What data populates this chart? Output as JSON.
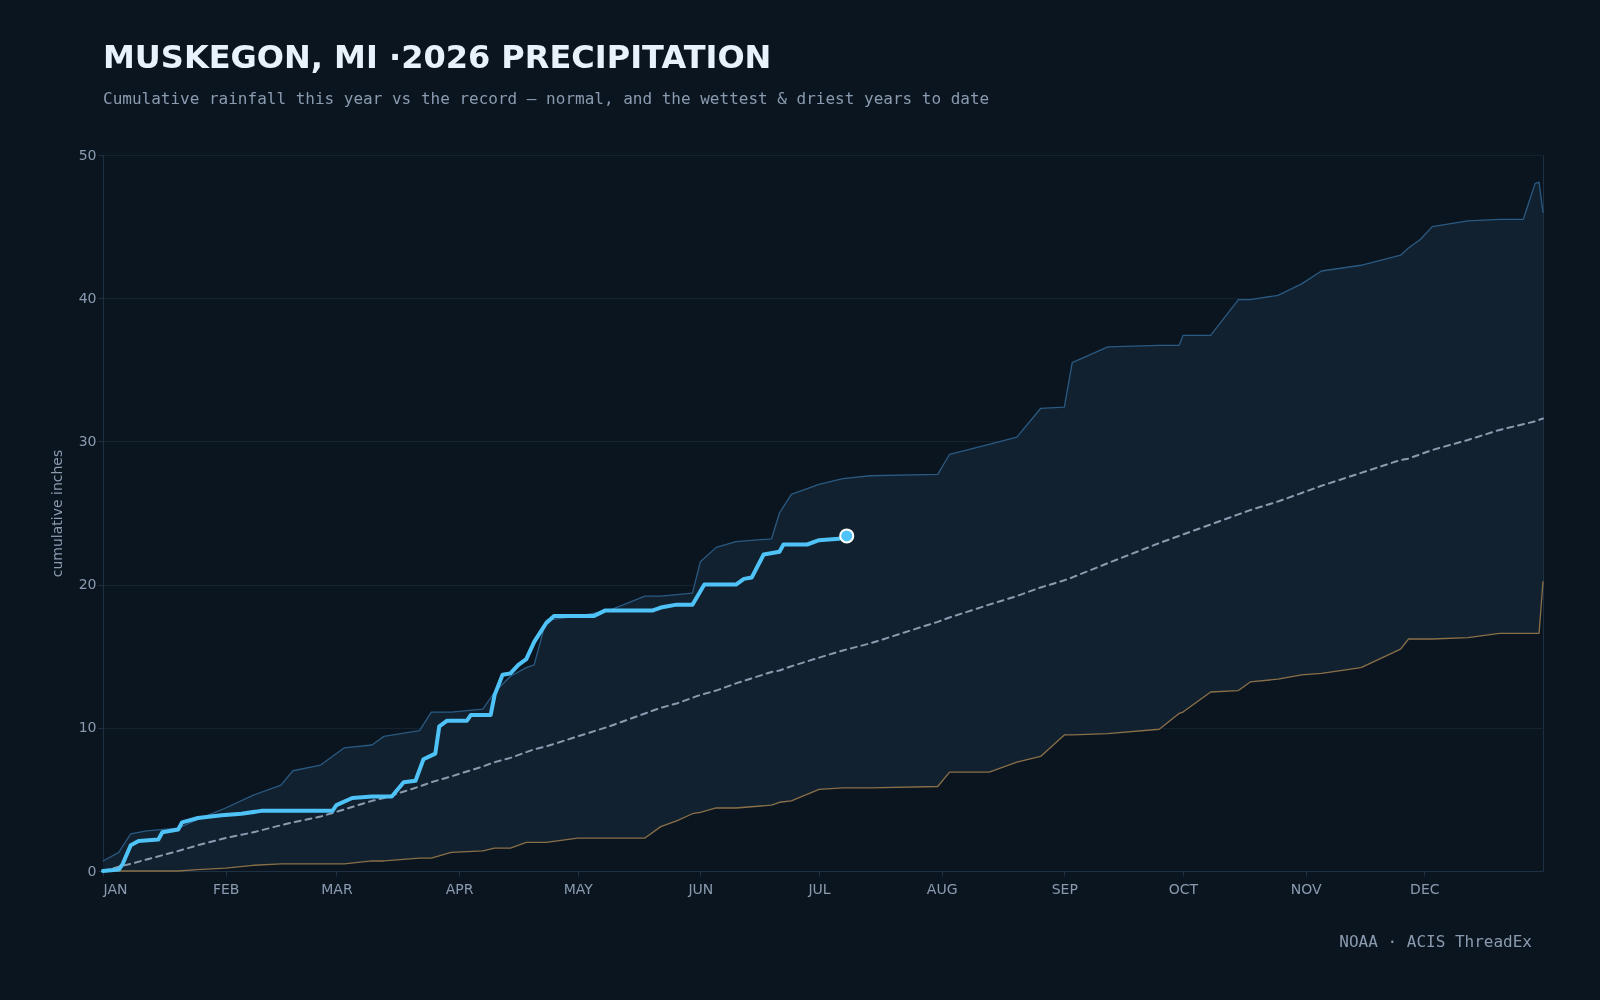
{
  "chart_data": {
    "type": "line",
    "title": "MUSKEGON, MI ·2026 PRECIPITATION",
    "subtitle": "Cumulative rainfall this year vs the record — normal, and the wettest & driest years to date",
    "ylabel": "cumulative inches",
    "annotations": [
      "NOAA · ACIS ThreadEx"
    ],
    "xlim": [
      "--01-01",
      "--12-31"
    ],
    "xticks": [
      {
        "value": "--01-01",
        "label": "JAN"
      },
      {
        "value": "--02-01",
        "label": "FEB"
      },
      {
        "value": "--03-01",
        "label": "MAR"
      },
      {
        "value": "--04-01",
        "label": "APR"
      },
      {
        "value": "--05-01",
        "label": "MAY"
      },
      {
        "value": "--06-01",
        "label": "JUN"
      },
      {
        "value": "--07-01",
        "label": "JUL"
      },
      {
        "value": "--08-01",
        "label": "AUG"
      },
      {
        "value": "--09-01",
        "label": "SEP"
      },
      {
        "value": "--10-01",
        "label": "OCT"
      },
      {
        "value": "--11-01",
        "label": "NOV"
      },
      {
        "value": "--12-01",
        "label": "DEC"
      }
    ],
    "ylim": [
      0,
      50
    ],
    "yticks": [
      0,
      10,
      20,
      30,
      40,
      50
    ],
    "grid": "y",
    "marker": "none",
    "x": [
      "--01-01",
      "--01-05",
      "--01-08",
      "--01-12",
      "--01-20",
      "--01-25",
      "--02-01",
      "--02-08",
      "--02-15",
      "--02-18",
      "--02-25",
      "--03-03",
      "--03-10",
      "--03-13",
      "--03-22",
      "--03-25",
      "--03-30",
      "--04-07",
      "--04-10",
      "--04-14",
      "--04-18",
      "--04-20",
      "--04-23",
      "--05-01",
      "--05-09",
      "--05-18",
      "--05-22",
      "--05-26",
      "--05-30",
      "--06-01",
      "--06-05",
      "--06-10",
      "--06-19",
      "--06-21",
      "--06-24",
      "--07-01",
      "--07-07",
      "--07-14",
      "--07-31",
      "--08-03",
      "--08-13",
      "--08-20",
      "--08-26",
      "--09-01",
      "--09-03",
      "--09-12",
      "--09-25",
      "--09-30",
      "--10-01",
      "--10-08",
      "--10-15",
      "--10-18",
      "--10-25",
      "--10-31",
      "--11-05",
      "--11-15",
      "--11-25",
      "--11-27",
      "--11-30",
      "--12-03",
      "--12-12",
      "--12-20",
      "--12-26",
      "--12-29",
      "--12-30",
      "--12-31"
    ],
    "series": [
      {
        "color": "#2a5a82",
        "values": [
          0.7,
          1.3,
          2.6,
          2.8,
          3.0,
          3.6,
          4.4,
          5.3,
          6.0,
          7.0,
          7.4,
          8.6,
          8.8,
          9.4,
          9.8,
          11.1,
          11.1,
          11.3,
          12.5,
          13.6,
          14.2,
          14.4,
          17.5,
          17.8,
          18.2,
          19.2,
          19.2,
          19.3,
          19.4,
          21.6,
          22.6,
          23.0,
          23.2,
          25.0,
          26.3,
          27.0,
          27.4,
          27.6,
          27.7,
          29.1,
          29.8,
          30.3,
          32.3,
          32.4,
          35.5,
          36.6,
          36.7,
          36.7,
          37.4,
          37.4,
          39.9,
          39.9,
          40.2,
          41.0,
          41.9,
          42.3,
          43.0,
          43.5,
          44.1,
          45.0,
          45.4,
          45.5,
          45.5,
          48.0,
          48.1,
          46.0
        ]
      },
      {
        "color": "#8a7048",
        "values": [
          0,
          0,
          0,
          0,
          0,
          0.1,
          0.2,
          0.4,
          0.5,
          0.5,
          0.5,
          0.5,
          0.7,
          0.7,
          0.9,
          0.9,
          1.3,
          1.4,
          1.6,
          1.6,
          2.0,
          2.0,
          2.0,
          2.3,
          2.3,
          2.3,
          3.1,
          3.5,
          4.0,
          4.1,
          4.4,
          4.4,
          4.6,
          4.8,
          4.9,
          5.7,
          5.8,
          5.8,
          5.9,
          6.9,
          6.9,
          7.6,
          8.0,
          9.5,
          9.5,
          9.6,
          9.9,
          11.0,
          11.1,
          12.5,
          12.6,
          13.2,
          13.4,
          13.7,
          13.8,
          14.2,
          15.5,
          16.2,
          16.2,
          16.2,
          16.3,
          16.6,
          16.6,
          16.6,
          16.6,
          20.2
        ]
      },
      {
        "color": "#8a9bb0",
        "line_style": "dashed",
        "values": [
          0,
          0.3,
          0.5,
          0.8,
          1.4,
          1.8,
          2.3,
          2.7,
          3.2,
          3.4,
          3.8,
          4.3,
          4.9,
          5.1,
          5.9,
          6.2,
          6.6,
          7.3,
          7.6,
          7.9,
          8.3,
          8.5,
          8.7,
          9.4,
          10.1,
          11.0,
          11.4,
          11.7,
          12.1,
          12.3,
          12.6,
          13.1,
          13.9,
          14.0,
          14.3,
          14.9,
          15.4,
          15.9,
          17.4,
          17.7,
          18.6,
          19.2,
          19.8,
          20.3,
          20.5,
          21.5,
          22.9,
          23.4,
          23.5,
          24.2,
          24.9,
          25.2,
          25.8,
          26.4,
          26.9,
          27.8,
          28.7,
          28.8,
          29.1,
          29.4,
          30.1,
          30.8,
          31.2,
          31.4,
          31.5,
          31.6
        ],
        "upper": [
          0.7,
          1.3,
          2.6,
          2.8,
          3.0,
          3.6,
          4.4,
          5.3,
          6.0,
          7.0,
          7.4,
          8.6,
          8.8,
          9.4,
          9.8,
          11.1,
          11.1,
          11.3,
          12.5,
          13.6,
          14.2,
          14.4,
          17.5,
          17.8,
          18.2,
          19.2,
          19.2,
          19.3,
          19.4,
          21.6,
          22.6,
          23.0,
          23.2,
          25.0,
          26.3,
          27.0,
          27.4,
          27.6,
          27.7,
          29.1,
          29.8,
          30.3,
          32.3,
          32.4,
          35.5,
          36.6,
          36.7,
          36.7,
          37.4,
          37.4,
          39.9,
          39.9,
          40.2,
          41.0,
          41.9,
          42.3,
          43.0,
          43.5,
          44.1,
          45.0,
          45.4,
          45.5,
          45.5,
          48.0,
          48.1,
          46.0
        ],
        "lower": [
          0,
          0,
          0,
          0,
          0,
          0.1,
          0.2,
          0.4,
          0.5,
          0.5,
          0.5,
          0.5,
          0.7,
          0.7,
          0.9,
          0.9,
          1.3,
          1.4,
          1.6,
          1.6,
          2.0,
          2.0,
          2.0,
          2.3,
          2.3,
          2.3,
          3.1,
          3.5,
          4.0,
          4.1,
          4.4,
          4.4,
          4.6,
          4.8,
          4.9,
          5.7,
          5.8,
          5.8,
          5.9,
          6.9,
          6.9,
          7.6,
          8.0,
          9.5,
          9.5,
          9.6,
          9.9,
          11.0,
          11.1,
          12.5,
          12.6,
          13.2,
          13.4,
          13.7,
          13.8,
          14.2,
          15.5,
          16.2,
          16.2,
          16.2,
          16.3,
          16.6,
          16.6,
          16.6,
          16.6,
          20.2
        ]
      },
      {
        "color": "#4fc3f7",
        "x": [
          "--01-01",
          "--01-05",
          "--01-06",
          "--01-08",
          "--01-10",
          "--01-15",
          "--01-16",
          "--01-20",
          "--01-21",
          "--01-25",
          "--01-31",
          "--02-05",
          "--02-10",
          "--02-28",
          "--03-01",
          "--03-05",
          "--03-10",
          "--03-15",
          "--03-18",
          "--03-21",
          "--03-23",
          "--03-26",
          "--03-27",
          "--03-29",
          "--04-03",
          "--04-04",
          "--04-09",
          "--04-10",
          "--04-12",
          "--04-14",
          "--04-16",
          "--04-18",
          "--04-20",
          "--04-23",
          "--04-25",
          "--05-05",
          "--05-08",
          "--05-20",
          "--05-22",
          "--05-26",
          "--05-30",
          "--06-02",
          "--06-10",
          "--06-12",
          "--06-14",
          "--06-17",
          "--06-21",
          "--06-22",
          "--06-28",
          "--07-01",
          "--07-06",
          "--07-08"
        ],
        "values": [
          0,
          0.1,
          0.5,
          1.8,
          2.1,
          2.2,
          2.7,
          2.9,
          3.4,
          3.7,
          3.9,
          4.0,
          4.2,
          4.2,
          4.6,
          5.1,
          5.2,
          5.2,
          6.2,
          6.3,
          7.8,
          8.2,
          10.1,
          10.5,
          10.5,
          10.9,
          10.9,
          12.3,
          13.7,
          13.8,
          14.4,
          14.8,
          16.0,
          17.3,
          17.8,
          17.8,
          18.2,
          18.2,
          18.4,
          18.6,
          18.6,
          20.0,
          20.0,
          20.4,
          20.5,
          22.1,
          22.3,
          22.8,
          22.8,
          23.1,
          23.2,
          23.4
        ]
      },
      {
        "type": "scatter",
        "color": "#4fc3f7",
        "marker": "circle",
        "x": [
          "--07-08"
        ],
        "values": [
          23.4
        ]
      }
    ]
  }
}
